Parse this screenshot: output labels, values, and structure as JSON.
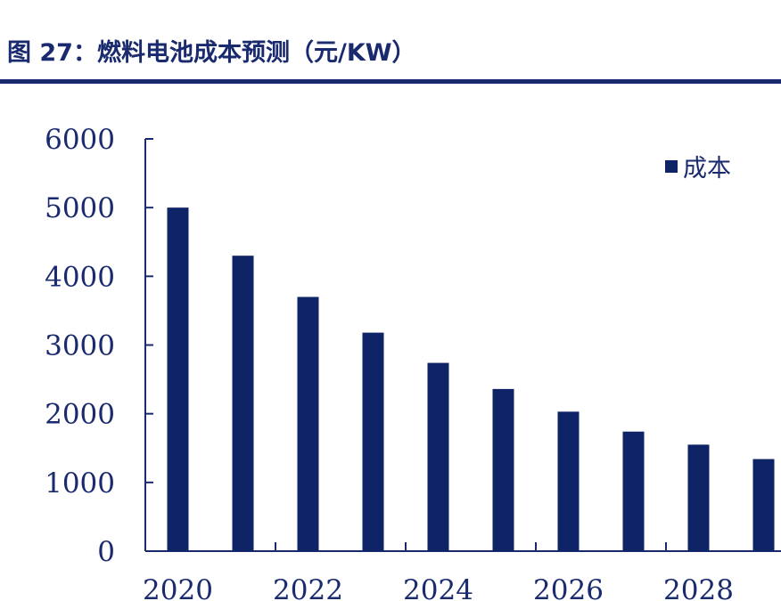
{
  "figure": {
    "title": "图 27：燃料电池成本预测（元/KW）"
  },
  "chart_data": {
    "type": "bar",
    "title": "图 27：燃料电池成本预测（元/KW）",
    "categories": [
      2020,
      2021,
      2022,
      2023,
      2024,
      2025,
      2026,
      2027,
      2028,
      2029
    ],
    "x_tick_labels": [
      "2020",
      "2022",
      "2024",
      "2026",
      "2028"
    ],
    "series": [
      {
        "name": "成本",
        "values": [
          5000,
          4300,
          3700,
          3180,
          2740,
          2360,
          2030,
          1740,
          1550,
          1340
        ],
        "color": "#0f2466"
      }
    ],
    "y_tick_labels": [
      "0",
      "1000",
      "2000",
      "3000",
      "4000",
      "5000",
      "6000"
    ],
    "ylim": [
      0,
      6000
    ],
    "xlabel": "",
    "ylabel": "",
    "grid": false,
    "legend_position": "top-right",
    "axis_color": "#1a2a6e"
  }
}
